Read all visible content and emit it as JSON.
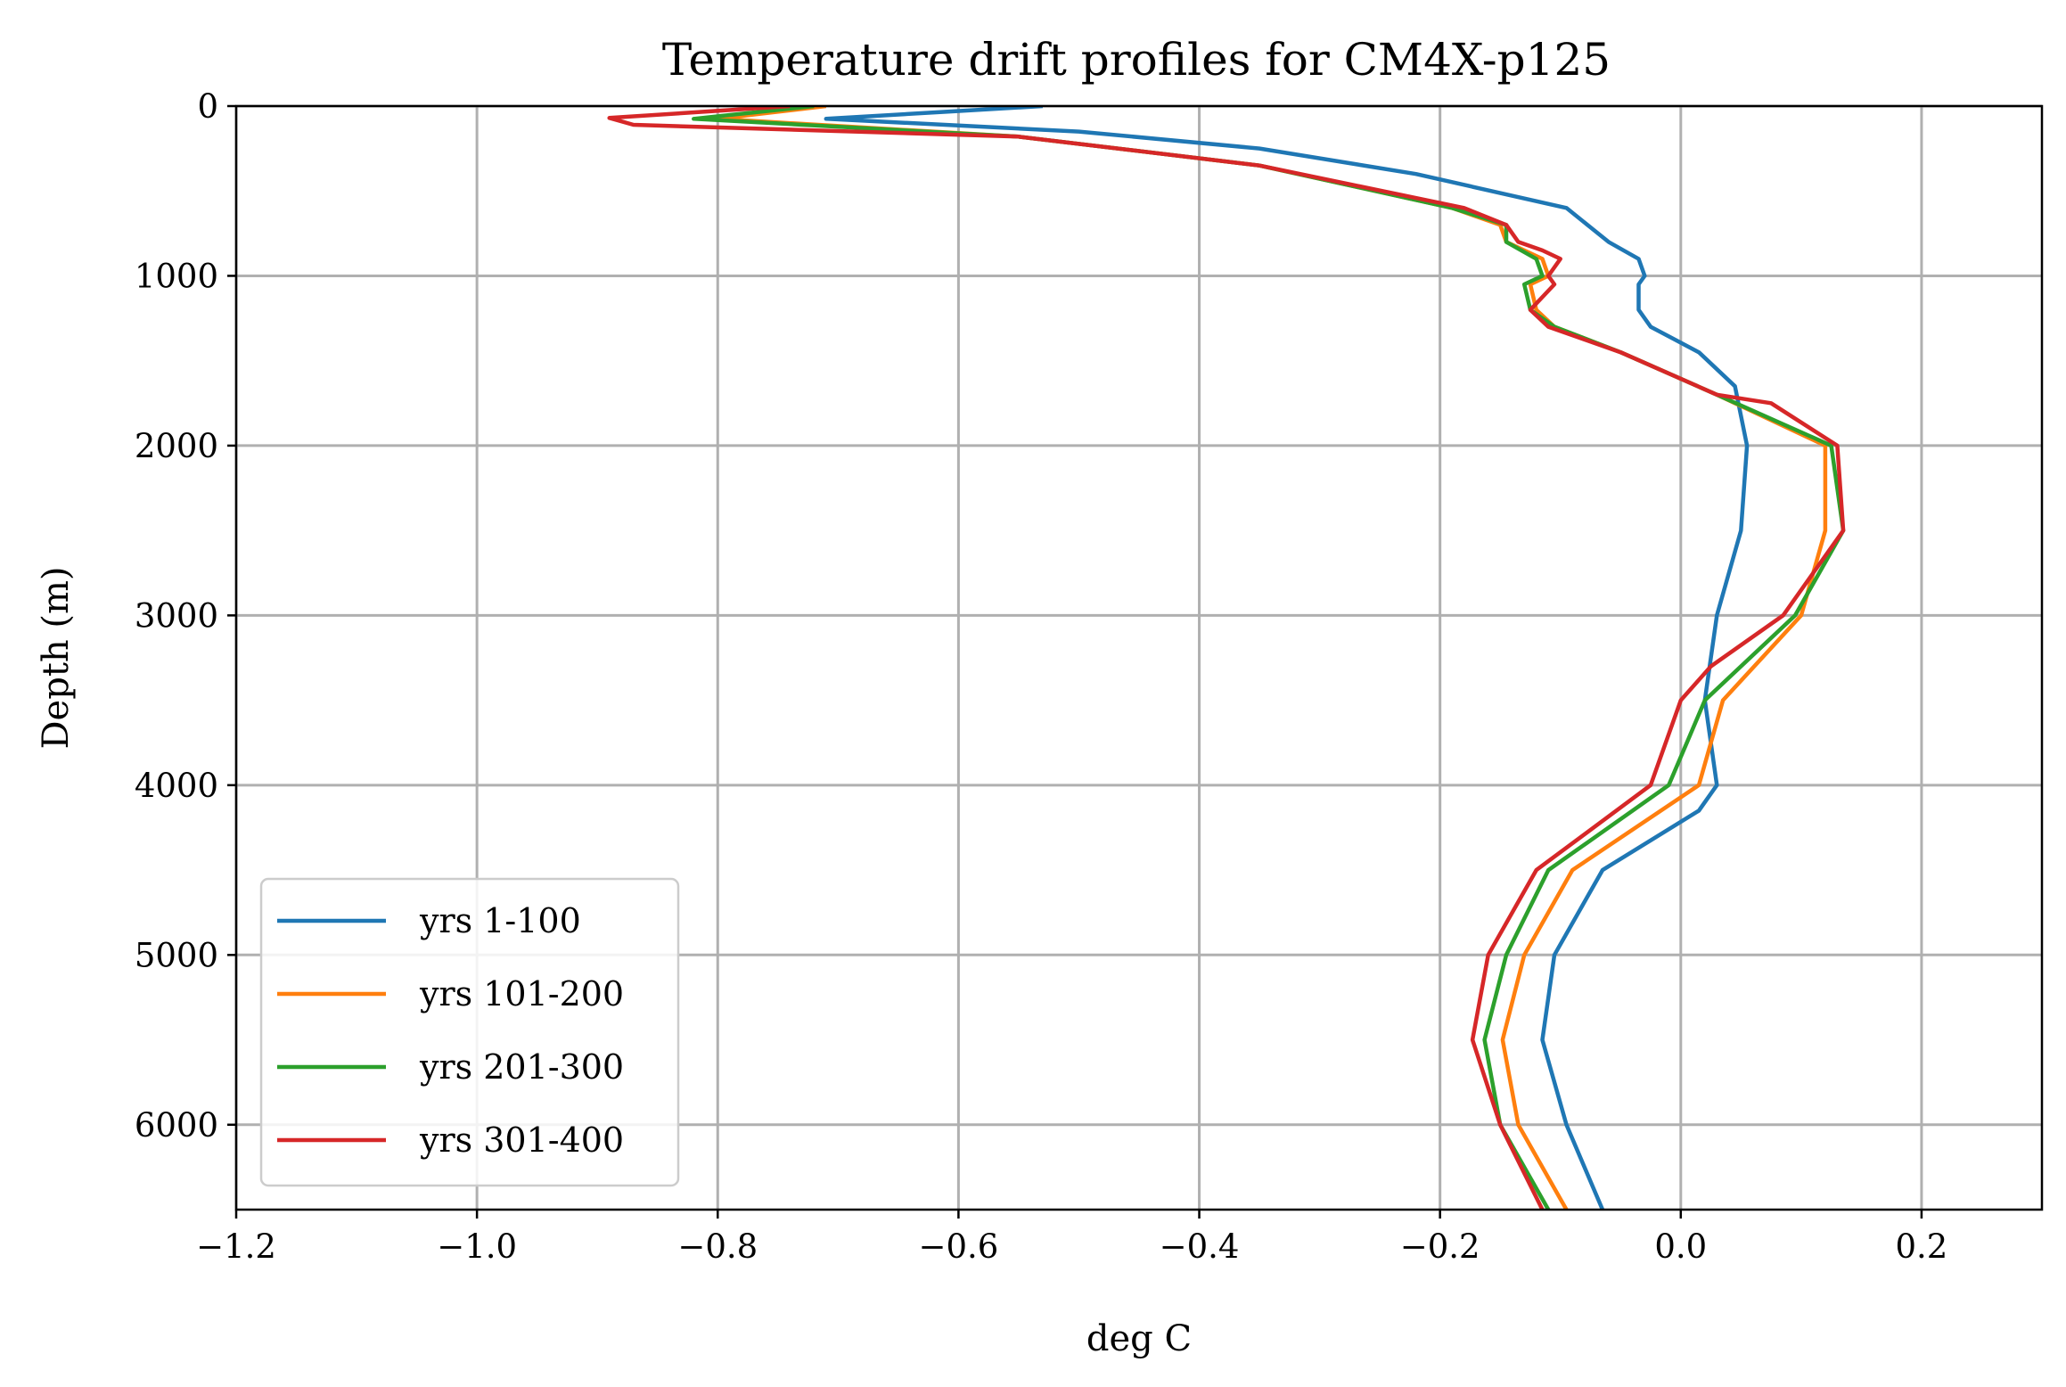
{
  "chart_data": {
    "type": "line",
    "title": "Temperature drift profiles for CM4X-p125",
    "xlabel": "deg C",
    "ylabel": "Depth (m)",
    "xlim": [
      -1.2,
      0.3
    ],
    "ylim": [
      6500,
      0
    ],
    "y_inverted": true,
    "xticks": [
      -1.2,
      -1.0,
      -0.8,
      -0.6,
      -0.4,
      -0.2,
      0.0,
      0.2
    ],
    "xtick_labels": [
      "−1.2",
      "−1.0",
      "−0.8",
      "−0.6",
      "−0.4",
      "−0.2",
      "0.0",
      "0.2"
    ],
    "yticks": [
      0,
      1000,
      2000,
      3000,
      4000,
      5000,
      6000
    ],
    "ytick_labels": [
      "0",
      "1000",
      "2000",
      "3000",
      "4000",
      "5000",
      "6000"
    ],
    "grid": true,
    "legend_position": "lower-left",
    "series": [
      {
        "name": "yrs 1-100",
        "color": "#1f77b4",
        "x": [
          -0.53,
          -0.71,
          -0.5,
          -0.35,
          -0.22,
          -0.095,
          -0.06,
          -0.035,
          -0.03,
          -0.035,
          -0.035,
          -0.025,
          0.015,
          0.03,
          0.045,
          0.055,
          0.05,
          0.03,
          0.02,
          0.03,
          0.015,
          -0.065,
          -0.105,
          -0.115,
          -0.095,
          -0.065
        ],
        "y": [
          0,
          75,
          150,
          250,
          400,
          600,
          800,
          900,
          1000,
          1050,
          1200,
          1300,
          1450,
          1550,
          1650,
          2000,
          2500,
          3000,
          3500,
          4000,
          4150,
          4500,
          5000,
          5500,
          6000,
          6500
        ]
      },
      {
        "name": "yrs 101-200",
        "color": "#ff7f0e",
        "x": [
          -0.71,
          -0.8,
          -0.55,
          -0.35,
          -0.19,
          -0.15,
          -0.145,
          -0.115,
          -0.11,
          -0.125,
          -0.12,
          -0.105,
          -0.05,
          0.03,
          0.12,
          0.12,
          0.1,
          0.035,
          0.025,
          0.015,
          -0.09,
          -0.13,
          -0.148,
          -0.135,
          -0.095
        ],
        "y": [
          0,
          75,
          180,
          350,
          600,
          700,
          800,
          900,
          1000,
          1050,
          1200,
          1300,
          1450,
          1700,
          2000,
          2500,
          3000,
          3500,
          3750,
          4000,
          4500,
          5000,
          5500,
          6000,
          6500
        ]
      },
      {
        "name": "yrs 201-300",
        "color": "#2ca02c",
        "x": [
          -0.72,
          -0.82,
          -0.55,
          -0.35,
          -0.19,
          -0.145,
          -0.145,
          -0.12,
          -0.115,
          -0.13,
          -0.125,
          -0.105,
          -0.05,
          0.03,
          0.125,
          0.135,
          0.095,
          0.02,
          0.005,
          -0.01,
          -0.11,
          -0.145,
          -0.163,
          -0.15,
          -0.11
        ],
        "y": [
          0,
          75,
          180,
          350,
          600,
          700,
          800,
          900,
          1000,
          1050,
          1200,
          1300,
          1450,
          1700,
          2000,
          2500,
          3000,
          3500,
          3750,
          4000,
          4500,
          5000,
          5500,
          6000,
          6500
        ]
      },
      {
        "name": "yrs 301-400",
        "color": "#d62728",
        "x": [
          -0.74,
          -0.89,
          -0.87,
          -0.55,
          -0.35,
          -0.18,
          -0.145,
          -0.135,
          -0.115,
          -0.1,
          -0.11,
          -0.105,
          -0.125,
          -0.11,
          -0.05,
          0.03,
          0.075,
          0.13,
          0.135,
          0.085,
          0.025,
          0.0,
          -0.025,
          -0.12,
          -0.16,
          -0.173,
          -0.15,
          -0.115
        ],
        "y": [
          0,
          70,
          110,
          180,
          350,
          600,
          700,
          800,
          850,
          900,
          1000,
          1050,
          1200,
          1300,
          1450,
          1700,
          1750,
          2000,
          2500,
          3000,
          3300,
          3500,
          4000,
          4500,
          5000,
          5500,
          6000,
          6500
        ]
      }
    ]
  }
}
